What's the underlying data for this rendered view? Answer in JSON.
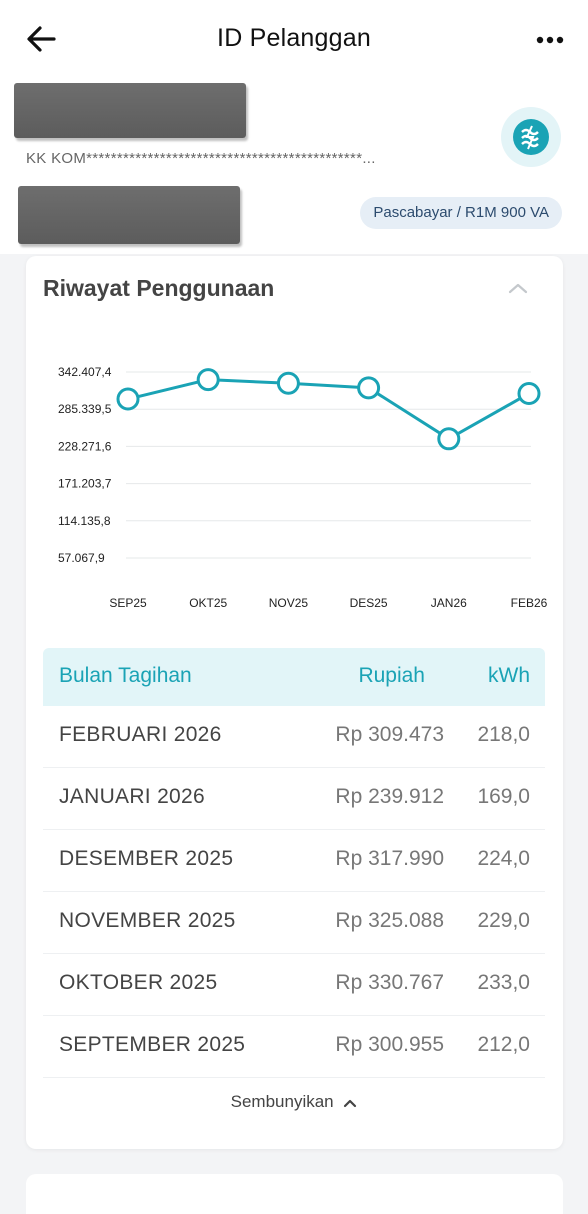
{
  "header": {
    "title": "ID Pelanggan",
    "back_icon": "arrow-left-icon",
    "more_icon": "more-horizontal-icon"
  },
  "customer": {
    "masked_text": "KK KOM*********************************************...",
    "tariff_badge": "Pascabayar / R1M 900 VA",
    "logo_icon": "pln-logo-icon"
  },
  "usage": {
    "title": "Riwayat Penggunaan",
    "collapse_icon": "chevron-up-icon",
    "hide_label": "Sembunyikan",
    "hide_icon": "chevron-up-icon"
  },
  "chart_data": {
    "type": "line",
    "categories": [
      "SEP25",
      "OKT25",
      "NOV25",
      "DES25",
      "JAN26",
      "FEB26"
    ],
    "values": [
      300955,
      330767,
      325088,
      317990,
      239912,
      309473
    ],
    "y_ticks": [
      "342.407,4",
      "285.339,5",
      "228.271,6",
      "171.203,7",
      "114.135,8",
      "57.067,9"
    ],
    "y_tick_values": [
      342407.4,
      285339.5,
      228271.6,
      171203.7,
      114135.8,
      57067.9
    ],
    "ylim": [
      57067.9,
      342407.4
    ],
    "grid": true,
    "color": "#1aa3b5"
  },
  "table": {
    "headers": {
      "month": "Bulan Tagihan",
      "rupiah": "Rupiah",
      "kwh": "kWh"
    },
    "rows": [
      {
        "month": "FEBRUARI 2026",
        "rupiah": "Rp 309.473",
        "kwh": "218,0"
      },
      {
        "month": "JANUARI 2026",
        "rupiah": "Rp 239.912",
        "kwh": "169,0"
      },
      {
        "month": "DESEMBER 2025",
        "rupiah": "Rp 317.990",
        "kwh": "224,0"
      },
      {
        "month": "NOVEMBER 2025",
        "rupiah": "Rp 325.088",
        "kwh": "229,0"
      },
      {
        "month": "OKTOBER 2025",
        "rupiah": "Rp 330.767",
        "kwh": "233,0"
      },
      {
        "month": "SEPTEMBER 2025",
        "rupiah": "Rp 300.955",
        "kwh": "212,0"
      }
    ]
  },
  "colors": {
    "accent": "#1aa3b5",
    "header_bg": "#e2f5f8",
    "badge_bg": "#e6eef6"
  }
}
